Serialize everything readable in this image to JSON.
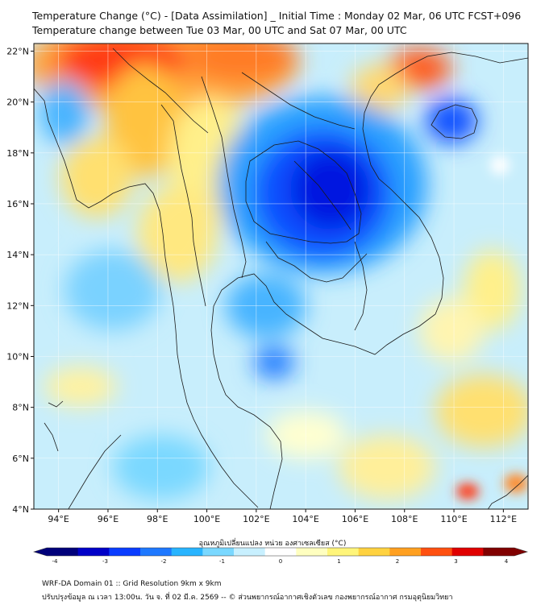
{
  "title_line1": "Temperature Change (°C) - [Data Assimilation] _ Initial Time : Monday 02 Mar, 06 UTC FCST+096",
  "title_line2": "Temperature change between Tue 03 Mar, 00 UTC and Sat 07 Mar, 00 UTC",
  "map": {
    "lat_labels": [
      "22°N",
      "20°N",
      "18°N",
      "16°N",
      "14°N",
      "12°N",
      "10°N",
      "8°N",
      "6°N",
      "4°N"
    ],
    "lat_values": [
      22,
      20,
      18,
      16,
      14,
      12,
      10,
      8,
      6,
      4
    ],
    "lon_labels": [
      "94°E",
      "96°E",
      "98°E",
      "100°E",
      "102°E",
      "104°E",
      "106°E",
      "108°E",
      "110°E",
      "112°E"
    ],
    "lon_values": [
      94,
      96,
      98,
      100,
      102,
      104,
      106,
      108,
      110,
      112
    ],
    "lon_range": [
      93,
      113
    ],
    "lat_range": [
      4,
      22.3
    ]
  },
  "colorbar": {
    "title": "อุณหภูมิเปลี่ยนแปลง หน่วย องศาเซลเซียส (°C)",
    "ticks": [
      "-4",
      "-3",
      "-2",
      "-1",
      "0",
      "1",
      "2",
      "3",
      "4"
    ],
    "tick_values": [
      -4,
      -3,
      -2,
      -1,
      0,
      1,
      2,
      3,
      4
    ],
    "colors": [
      "#00007a",
      "#0000c8",
      "#0a3cff",
      "#1e78ff",
      "#28b4ff",
      "#7ad8ff",
      "#c8f0ff",
      "#ffffff",
      "#ffffc0",
      "#fff57a",
      "#ffd240",
      "#ffa020",
      "#ff5010",
      "#e00000",
      "#800000"
    ]
  },
  "footer_line1": "WRF-DA Domain 01 :: Grid Resolution 9km x 9km",
  "footer_line2": "ปรับปรุงข้อมูล ณ เวลา 13:00น. วัน จ. ที่ 02 มี.ค. 2569 -- © ส่วนพยากรณ์อากาศเชิงตัวเลข กองพยากรณ์อากาศ กรมอุตุนิยมวิทยา"
}
